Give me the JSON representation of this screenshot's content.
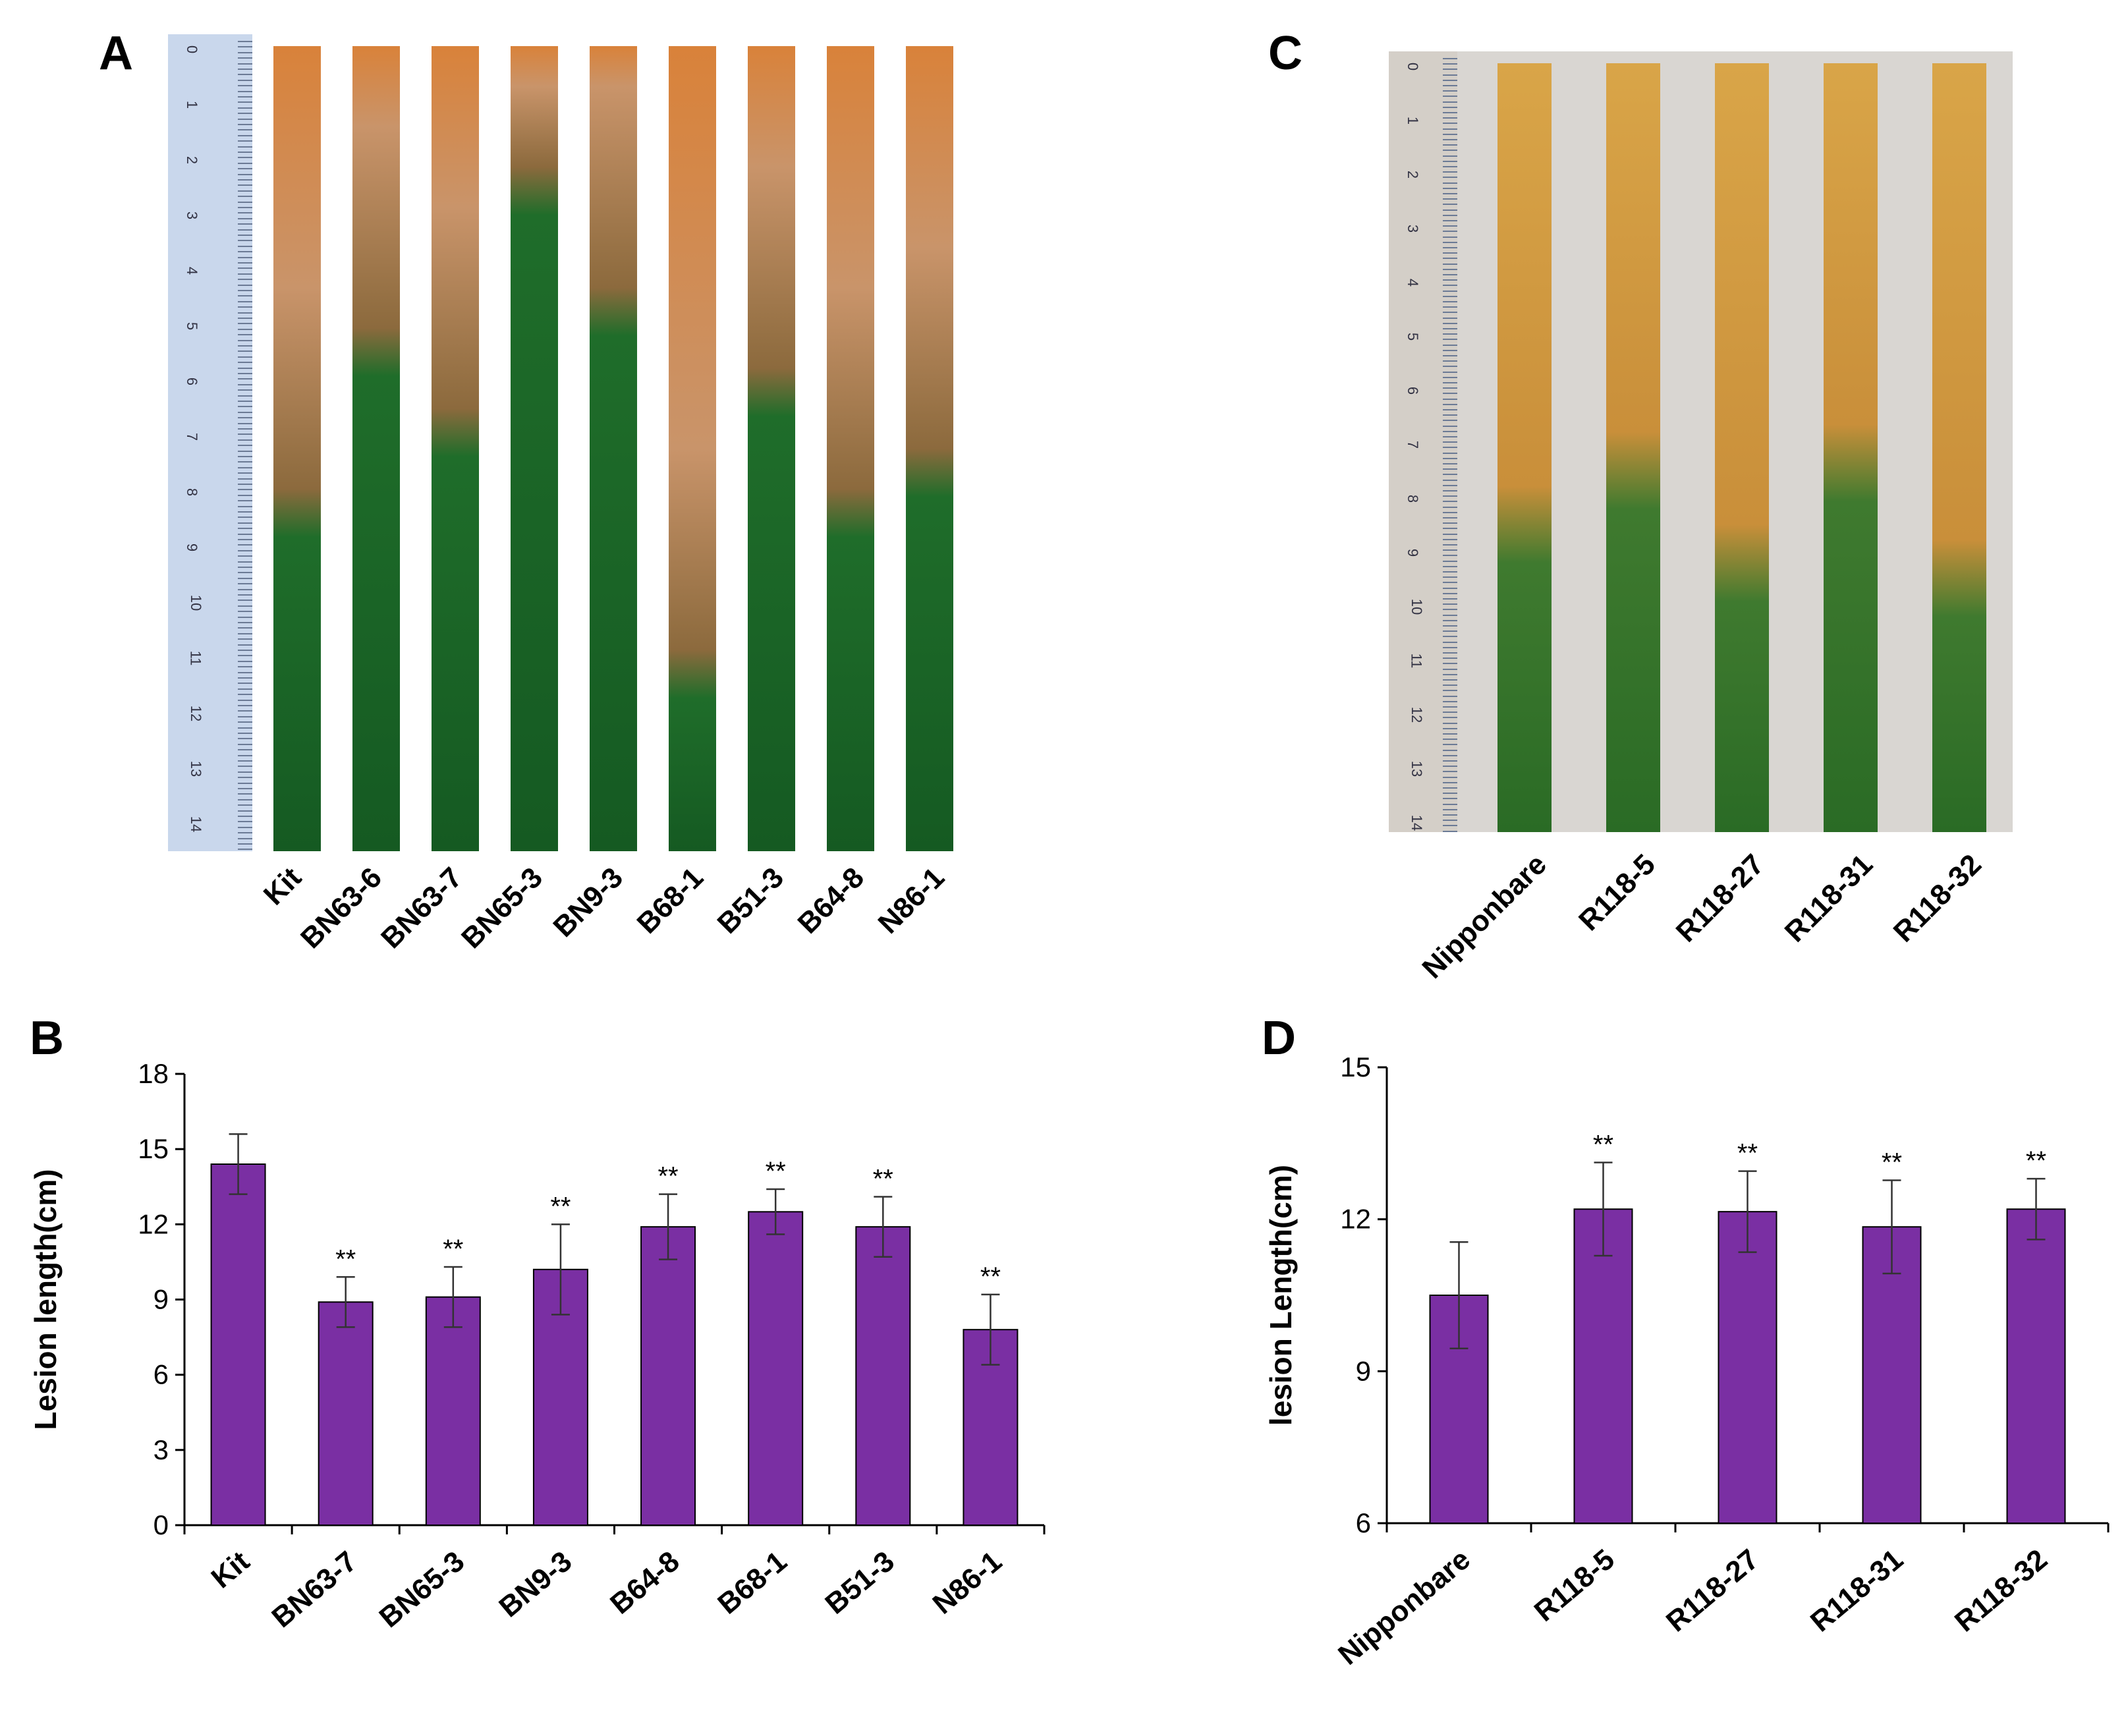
{
  "panels": {
    "a": {
      "letter": "A",
      "leaf_labels": [
        "Kit",
        "BN63-6",
        "BN63-7",
        "BN65-3",
        "BN9-3",
        "B68-1",
        "B51-3",
        "B64-8",
        "N86-1"
      ]
    },
    "c": {
      "letter": "C",
      "leaf_labels": [
        "Nipponbare",
        "R118-5",
        "R118-27",
        "R118-31",
        "R118-32"
      ]
    },
    "b": {
      "letter": "B"
    },
    "d": {
      "letter": "D"
    }
  },
  "ruler_a": {
    "numbers": [
      "0",
      "1",
      "2",
      "3",
      "4",
      "5",
      "6",
      "7",
      "8",
      "9",
      "10",
      "11",
      "12",
      "13",
      "14"
    ]
  },
  "ruler_c": {
    "numbers": [
      "0",
      "1",
      "2",
      "3",
      "4",
      "5",
      "6",
      "7",
      "8",
      "9",
      "10",
      "11",
      "12",
      "13",
      "14"
    ]
  },
  "colors": {
    "bar": "#7a2fa3",
    "leaf_green": "#1f6d2a",
    "lesion_orange": "#d9823a",
    "lesion_yellow": "#d9a548"
  },
  "chart_data": [
    {
      "panel": "B",
      "type": "bar",
      "categories": [
        "Kit",
        "BN63-7",
        "BN65-3",
        "BN9-3",
        "B64-8",
        "B68-1",
        "B51-3",
        "N86-1"
      ],
      "values": [
        14.4,
        8.9,
        9.1,
        10.2,
        11.9,
        12.5,
        11.9,
        7.8
      ],
      "errors": [
        1.2,
        1.0,
        1.2,
        1.8,
        1.3,
        0.9,
        1.2,
        1.4
      ],
      "annotations": [
        "",
        "**",
        "**",
        "**",
        "**",
        "**",
        "**",
        "**"
      ],
      "ylabel": "Lesion length(cm)",
      "ylim": [
        0,
        18
      ],
      "yticks": [
        "0",
        "3",
        "6",
        "9",
        "12",
        "15",
        "18"
      ]
    },
    {
      "panel": "D",
      "type": "bar",
      "categories": [
        "Nipponbare",
        "R118-5",
        "R118-27",
        "R118-31",
        "R118-32"
      ],
      "values": [
        10.5,
        12.2,
        12.15,
        11.85,
        12.2
      ],
      "errors": [
        1.05,
        0.92,
        0.8,
        0.92,
        0.6
      ],
      "annotations": [
        "",
        "**",
        "**",
        "**",
        "**"
      ],
      "ylabel": "lesion Length(cm)",
      "ylim": [
        6,
        15
      ],
      "yticks": [
        "6",
        "9",
        "12",
        "15"
      ]
    }
  ]
}
